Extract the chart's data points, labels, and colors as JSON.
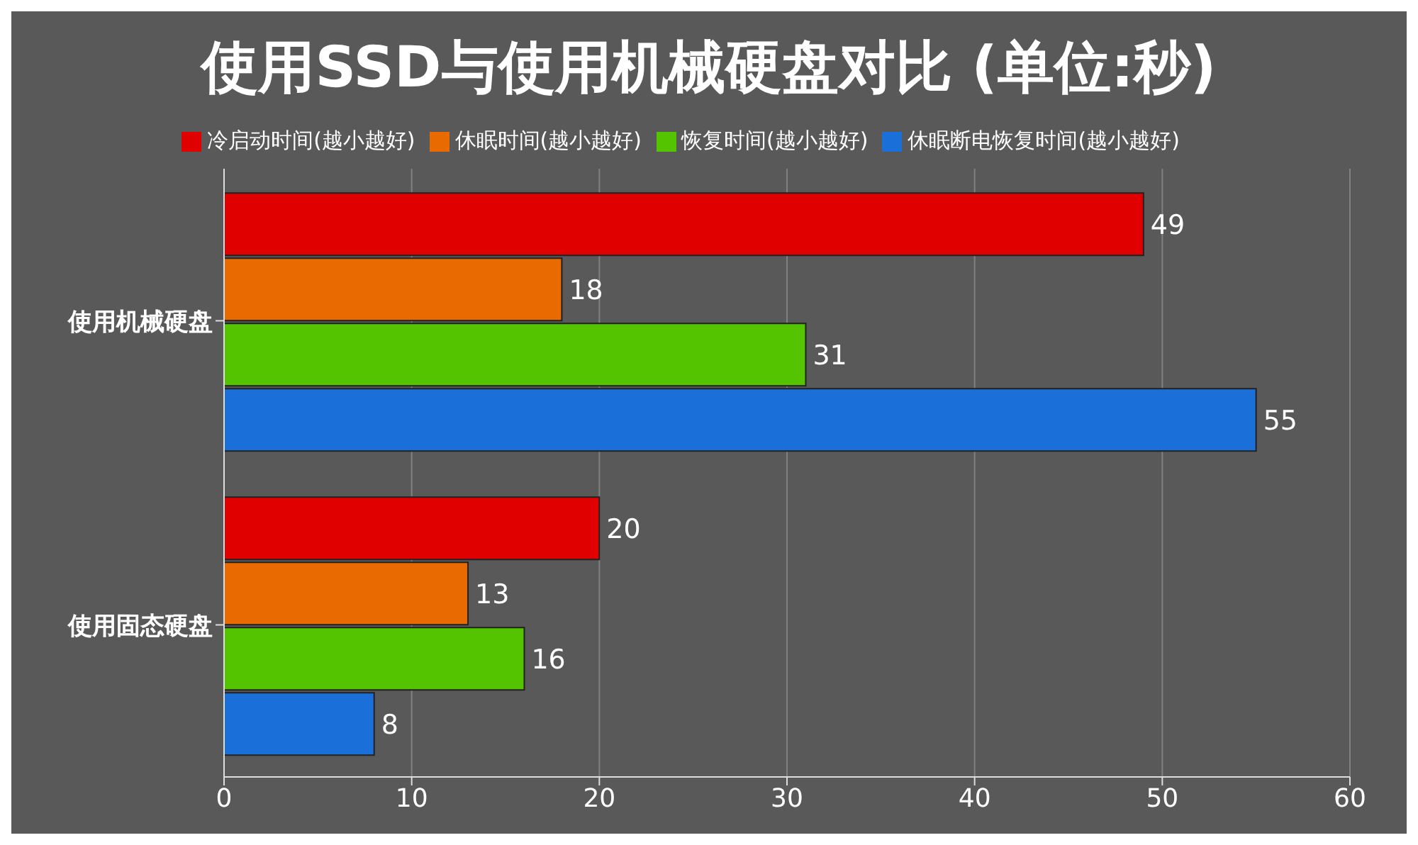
{
  "chart_data": {
    "type": "bar",
    "orientation": "horizontal",
    "title": "使用SSD与使用机械硬盘对比 (单位:秒)",
    "categories": [
      "使用机械硬盘",
      "使用固态硬盘"
    ],
    "series": [
      {
        "name": "冷启动时间(越小越好)",
        "color": "#e00000",
        "values": [
          49,
          20
        ]
      },
      {
        "name": "休眠时间(越小越好)",
        "color": "#e86a00",
        "values": [
          18,
          13
        ]
      },
      {
        "name": "恢复时间(越小越好)",
        "color": "#55c400",
        "values": [
          31,
          16
        ]
      },
      {
        "name": "休眠断电恢复时间(越小越好)",
        "color": "#1a6fd8",
        "values": [
          55,
          8
        ]
      }
    ],
    "xlim": [
      0,
      60
    ],
    "xticks": [
      0,
      10,
      20,
      30,
      40,
      50,
      60
    ],
    "grid": "x",
    "legend": "top",
    "data_labels": true
  }
}
